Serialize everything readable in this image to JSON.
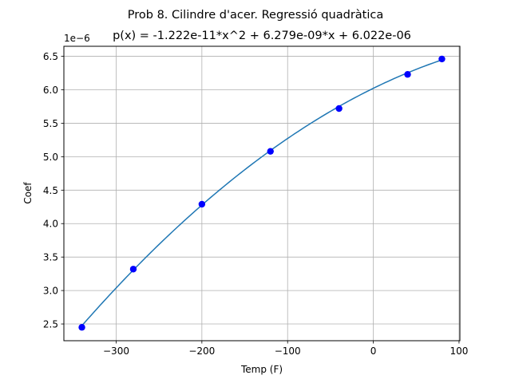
{
  "figure": {
    "title_line1": "Prob 8. Cilindre d'acer. Regressió quadràtica",
    "title_line2": "p(x) = -1.222e-11*x^2 + 6.279e-09*x + 6.022e-06",
    "offset_text": "1e−6"
  },
  "chart_data": {
    "type": "scatter",
    "title": "Prob 8. Cilindre d'acer. Regressió quadràtica",
    "subtitle": "p(x) = -1.222e-11*x^2 + 6.279e-09*x + 6.022e-06",
    "xlabel": "Temp (F)",
    "ylabel": "Coef",
    "y_scale_multiplier": "1e-6",
    "xlim": [
      -361,
      101
    ],
    "ylim": [
      2.25,
      6.65
    ],
    "xticks": [
      -300,
      -200,
      -100,
      0,
      100
    ],
    "xtick_labels": [
      "−300",
      "−200",
      "−100",
      "0",
      "100"
    ],
    "yticks": [
      2.5,
      3.0,
      3.5,
      4.0,
      4.5,
      5.0,
      5.5,
      6.0,
      6.5
    ],
    "ytick_labels": [
      "2.5",
      "3.0",
      "3.5",
      "4.0",
      "4.5",
      "5.0",
      "5.5",
      "6.0",
      "6.5"
    ],
    "grid": true,
    "series": [
      {
        "kind": "points",
        "color": "#0000ff",
        "x": [
          -340,
          -280,
          -200,
          -120,
          -40,
          40,
          80
        ],
        "y": [
          2.45,
          3.32,
          4.29,
          5.08,
          5.72,
          6.23,
          6.46
        ]
      },
      {
        "kind": "fit_curve",
        "color": "#1f77b4",
        "coefficients": [
          -1.222e-11,
          6.279e-09,
          6.022e-06
        ],
        "x_range": [
          -340,
          80
        ]
      }
    ]
  }
}
